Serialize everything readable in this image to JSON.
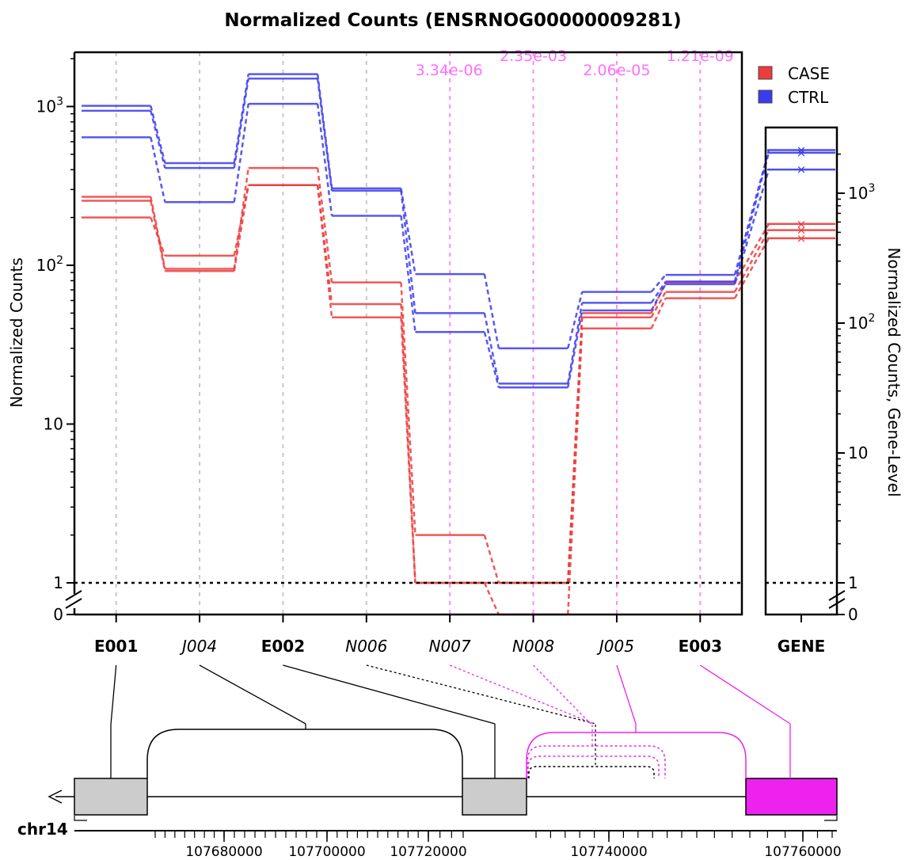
{
  "chart_data": {
    "type": "line",
    "title": "Normalized Counts (ENSRNOG00000009281)",
    "ylabel": "Normalized Counts",
    "ylabel_right": "Normalized Counts, Gene-Level",
    "y_scale": "log10 with 0 and 1 shown below axis break",
    "y_ticks": [
      "0",
      "1",
      "10",
      "10^2",
      "10^3"
    ],
    "grid": "vertical dashed lines at each feature",
    "legend_position": "top-right",
    "colors": {
      "CASE": "#ee3b3b",
      "CTRL": "#3b3bee",
      "pval": "#ff55ff",
      "gene_box": "#ee22ee",
      "exon_fill": "#cccccc"
    },
    "features": [
      {
        "id": "E001",
        "type": "exon"
      },
      {
        "id": "J004",
        "type": "junction"
      },
      {
        "id": "E002",
        "type": "exon"
      },
      {
        "id": "N006",
        "type": "novel-junction"
      },
      {
        "id": "N007",
        "type": "novel-junction",
        "pvalue": "3.34e-06"
      },
      {
        "id": "N008",
        "type": "novel-junction",
        "pvalue": "2.35e-03"
      },
      {
        "id": "J005",
        "type": "junction",
        "pvalue": "2.06e-05"
      },
      {
        "id": "E003",
        "type": "exon",
        "pvalue": "1.21e-09"
      }
    ],
    "series": [
      {
        "name": "CASE",
        "group": "CASE",
        "values": [
          270,
          95,
          410,
          78,
          2,
          1,
          50,
          78
        ]
      },
      {
        "name": "CASE",
        "group": "CASE",
        "values": [
          255,
          92,
          320,
          57,
          1,
          1,
          47,
          68
        ]
      },
      {
        "name": "CASE",
        "group": "CASE",
        "values": [
          200,
          115,
          320,
          47,
          1,
          0,
          40,
          62
        ]
      },
      {
        "name": "CTRL",
        "group": "CTRL",
        "values": [
          1010,
          440,
          1600,
          305,
          88,
          30,
          68,
          87
        ]
      },
      {
        "name": "CTRL",
        "group": "CTRL",
        "values": [
          940,
          410,
          1500,
          295,
          50,
          18,
          58,
          79
        ]
      },
      {
        "name": "CTRL",
        "group": "CTRL",
        "values": [
          640,
          250,
          1040,
          205,
          38,
          17,
          52,
          76
        ]
      }
    ],
    "gene_level": {
      "label": "GENE",
      "CASE": [
        580,
        520,
        450
      ],
      "CTRL": [
        2150,
        2050,
        1520
      ]
    },
    "genome": {
      "chromosome": "chr14",
      "strand": "-",
      "x_ticks": [
        107680000,
        107700000,
        107720000,
        107740000,
        107760000
      ],
      "x_tick_labels": [
        "107680000",
        "107700000",
        "107720000",
        "107740000",
        "107760000"
      ]
    }
  }
}
